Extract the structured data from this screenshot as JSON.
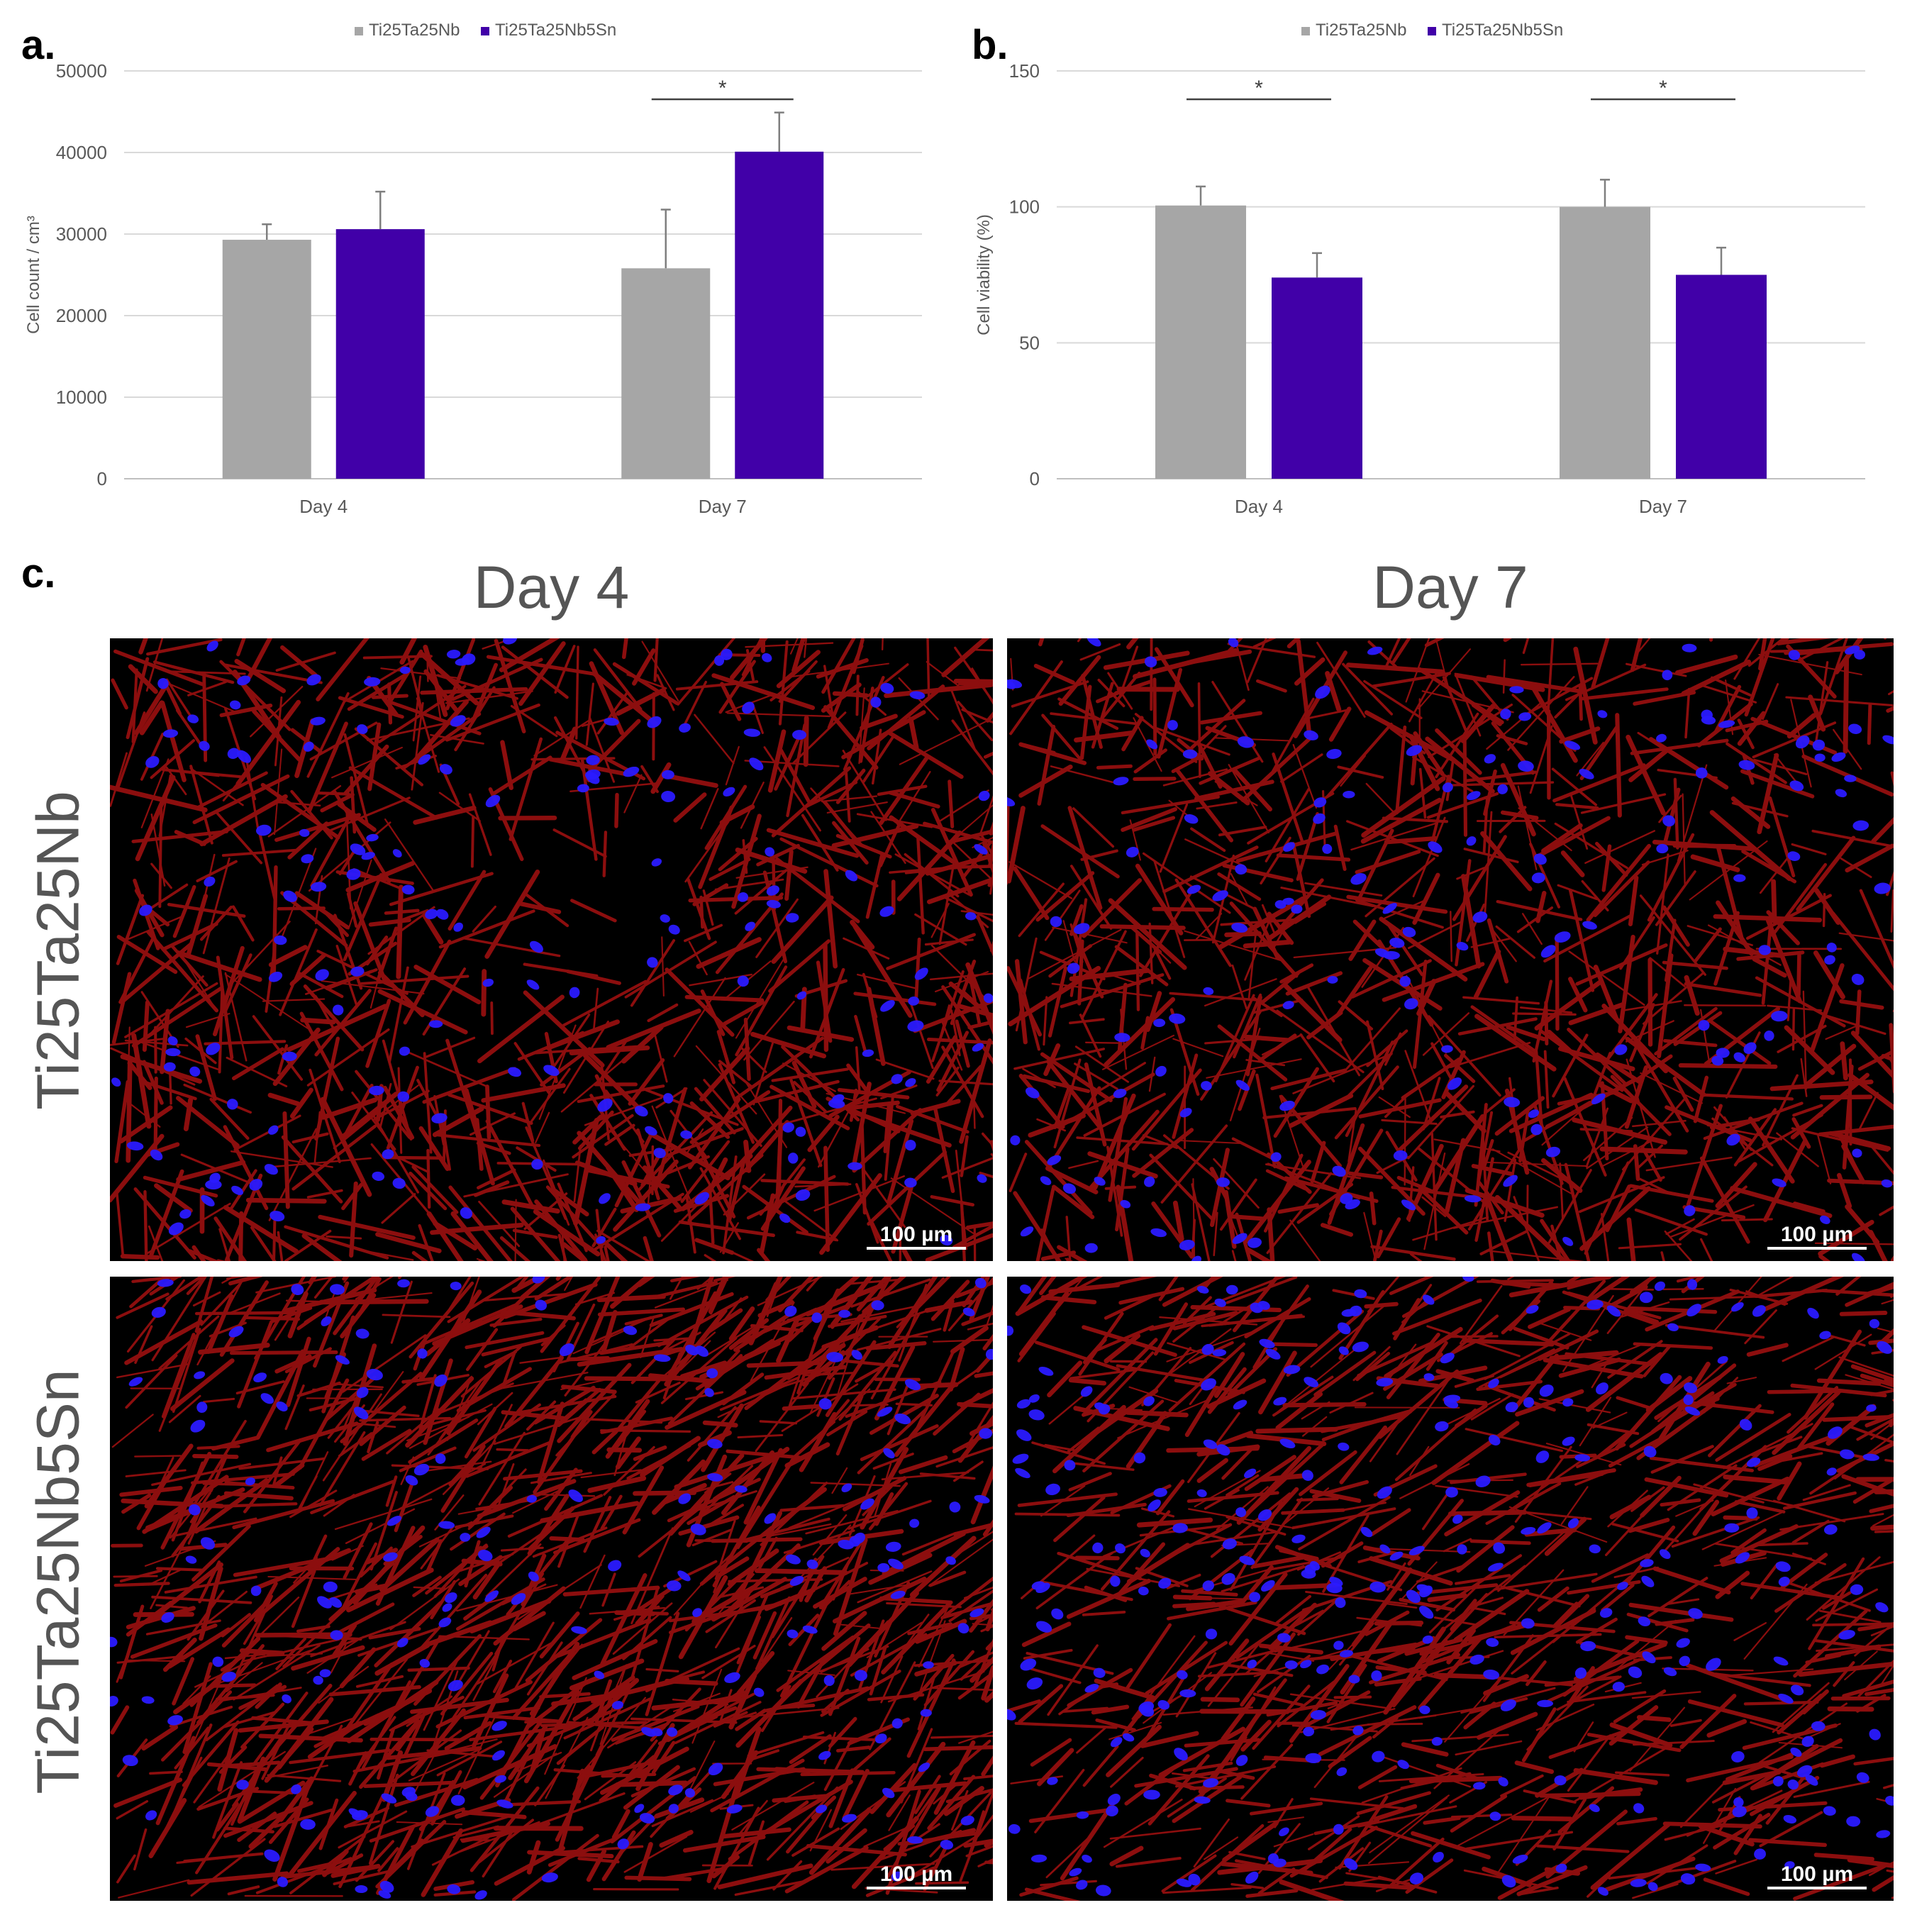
{
  "panel_labels": {
    "a": "a.",
    "b": "b.",
    "c": "c."
  },
  "colors": {
    "series1": "#a6a6a6",
    "series2": "#4100a8",
    "grid": "#d9d9d9",
    "axis_text": "#595959"
  },
  "chart_data": [
    {
      "type": "bar",
      "categories": [
        "Day 4",
        "Day 7"
      ],
      "series": [
        {
          "name": "Ti25Ta25Nb",
          "values": [
            29300,
            25800
          ],
          "errors": [
            1900,
            7200
          ]
        },
        {
          "name": "Ti25Ta25Nb5Sn",
          "values": [
            30600,
            40100
          ],
          "errors": [
            4600,
            4800
          ]
        }
      ],
      "xlabel": "",
      "ylabel": "Cell count / cm³",
      "ylim": [
        0,
        50000
      ],
      "yticks": [
        0,
        10000,
        20000,
        30000,
        40000,
        50000
      ],
      "grid": true,
      "legend": "top-center",
      "significance": [
        {
          "category": "Day 7",
          "label": "*"
        }
      ]
    },
    {
      "type": "bar",
      "categories": [
        "Day 4",
        "Day 7"
      ],
      "series": [
        {
          "name": "Ti25Ta25Nb",
          "values": [
            100.5,
            100
          ],
          "errors": [
            7,
            10
          ]
        },
        {
          "name": "Ti25Ta25Nb5Sn",
          "values": [
            74,
            75
          ],
          "errors": [
            9,
            10
          ]
        }
      ],
      "xlabel": "",
      "ylabel": "Cell viability (%)",
      "ylim": [
        0,
        150
      ],
      "yticks": [
        0,
        50,
        100,
        150
      ],
      "grid": true,
      "legend": "top-center",
      "significance": [
        {
          "category": "Day 4",
          "label": "*"
        },
        {
          "category": "Day 7",
          "label": "*"
        }
      ]
    }
  ],
  "micrographs": {
    "columns": [
      "Day 4",
      "Day 7"
    ],
    "rows": [
      "Ti25Ta25Nb",
      "Ti25Ta25Nb5Sn"
    ],
    "scale_bar": "100 µm",
    "stain_colors": {
      "actin": "#ff1a1a",
      "nuclei": "#2a1aff"
    }
  }
}
